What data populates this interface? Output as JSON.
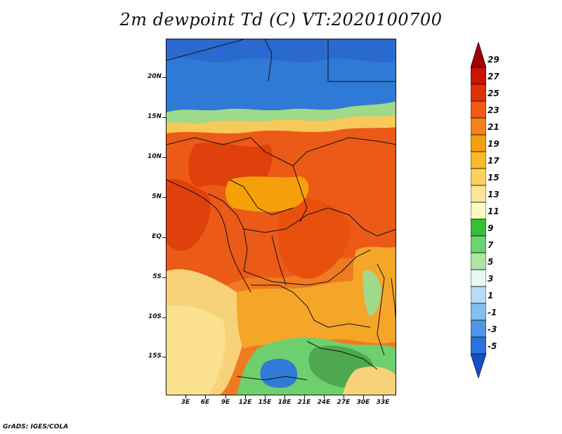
{
  "title": "2m dewpoint Td (C) VT:2020100700",
  "credit": "GrADS: IGES/COLA",
  "lat_labels": [
    "20N",
    "15N",
    "10N",
    "5N",
    "EQ",
    "5S",
    "10S",
    "15S"
  ],
  "lon_labels": [
    "3E",
    "6E",
    "9E",
    "12E",
    "15E",
    "18E",
    "21E",
    "24E",
    "27E",
    "30E",
    "33E"
  ],
  "colorbar": {
    "labels": [
      "29",
      "27",
      "25",
      "23",
      "21",
      "19",
      "17",
      "15",
      "13",
      "11",
      "9",
      "7",
      "5",
      "3",
      "1",
      "-1",
      "-3",
      "-5"
    ],
    "colors": [
      "#a50000",
      "#c81400",
      "#e03200",
      "#f05a14",
      "#f5821e",
      "#f5a00a",
      "#fab928",
      "#fad25a",
      "#fae696",
      "#fafabe",
      "#37be37",
      "#6ed26e",
      "#aae6a0",
      "#e6faf0",
      "#b4dcf5",
      "#82bef0",
      "#5096e6",
      "#2873dc",
      "#1450c8"
    ]
  },
  "regions": {
    "dry_north": "#2f7ad6",
    "humid_west": "#e8480c",
    "south_dry": "#f7d27a",
    "south_green": "#6ecf6e"
  }
}
